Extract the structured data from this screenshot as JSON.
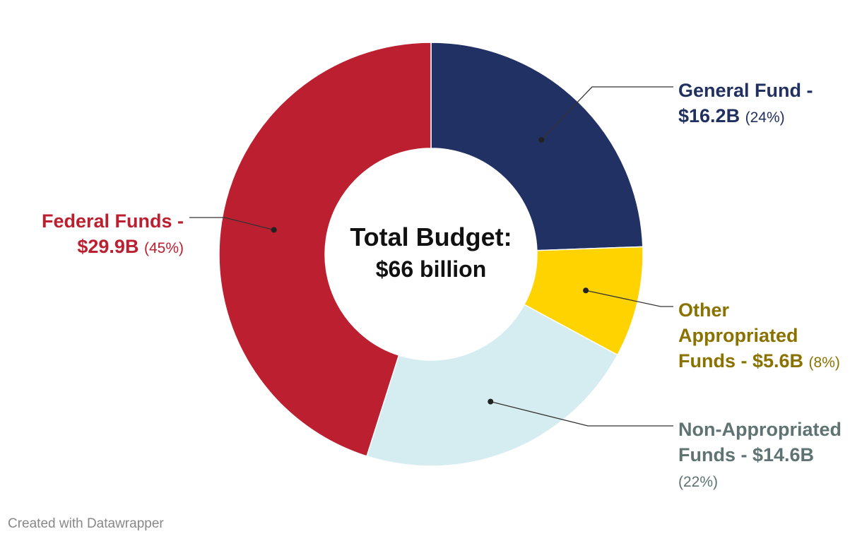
{
  "chart_data": {
    "type": "pie",
    "donut": true,
    "center_label": {
      "line1": "Total Budget:",
      "line2": "$66 billion"
    },
    "slices": [
      {
        "name": "General Fund -",
        "value_label": "$16.2B",
        "pct_label": "(24%)",
        "value": 16.2,
        "color": "#223163"
      },
      {
        "name": "Other Appropriated Funds -",
        "value_label": "$5.6B",
        "pct_label": "(8%)",
        "value": 5.6,
        "color": "#fed300"
      },
      {
        "name": "Non-Appropriated Funds -",
        "value_label": "$14.6B",
        "pct_label": "(22%)",
        "value": 14.6,
        "color": "#d5edf1"
      },
      {
        "name": "Federal Funds -",
        "value_label": "$29.9B",
        "pct_label": "(45%)",
        "value": 29.9,
        "color": "#bb1f30"
      }
    ],
    "text_labels": {
      "general_line1": "General Fund -",
      "general_value": "$16.2B",
      "general_pct": "(24%)",
      "other_line1": "Other",
      "other_line2": "Appropriated",
      "other_line3": "Funds - $5.6B",
      "other_pct": "(8%)",
      "nonapp_line1": "Non-Appropriated",
      "nonapp_line2": "Funds - $14.6B",
      "nonapp_pct": "(22%)",
      "federal_line1": "Federal Funds -",
      "federal_value": "$29.9B",
      "federal_pct": "(45%)"
    }
  },
  "footer": {
    "credit": "Created with Datawrapper"
  }
}
